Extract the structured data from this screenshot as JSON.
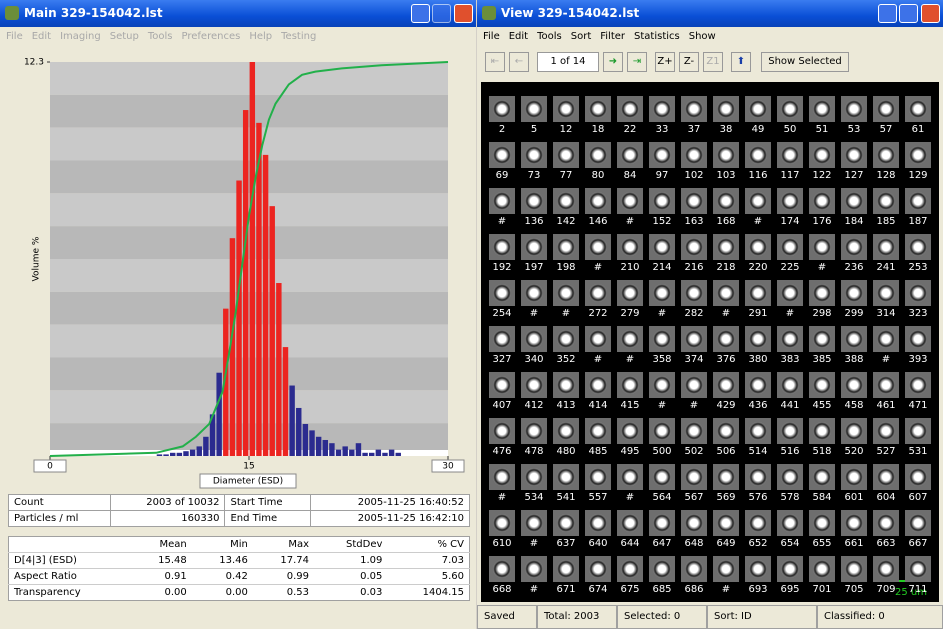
{
  "main_window": {
    "title": "Main  329-154042.lst",
    "menu": [
      "File",
      "Edit",
      "Imaging",
      "Setup",
      "Tools",
      "Preferences",
      "Help",
      "Testing"
    ],
    "chart": {
      "type": "histogram",
      "ylabel": "Volume %",
      "xlabel": "Diameter (ESD)",
      "xlim": [
        0,
        30
      ],
      "xticks": [
        0,
        15,
        30
      ],
      "ylim": [
        0,
        12.3
      ],
      "yticks": [
        12.3
      ],
      "bins": [
        8,
        8.5,
        9,
        9.5,
        10,
        10.5,
        11,
        11.5,
        12,
        12.5,
        13,
        13.5,
        14,
        14.5,
        15,
        15.5,
        16,
        16.5,
        17,
        17.5,
        18,
        18.5,
        19,
        19.5,
        20,
        20.5,
        21,
        21.5,
        22,
        22.5,
        23,
        23.5,
        24,
        24.5,
        25,
        25.5,
        26,
        26.5
      ],
      "values": [
        0.05,
        0.05,
        0.1,
        0.1,
        0.15,
        0.2,
        0.3,
        0.6,
        1.3,
        2.6,
        4.6,
        6.8,
        8.6,
        10.8,
        12.3,
        10.4,
        9.4,
        7.8,
        5.4,
        3.4,
        2.2,
        1.5,
        1.0,
        0.8,
        0.6,
        0.5,
        0.4,
        0.2,
        0.3,
        0.2,
        0.4,
        0.1,
        0.1,
        0.2,
        0.1,
        0.2,
        0.1
      ],
      "color": "#2b2b8f",
      "highlight_range": [
        13,
        18
      ],
      "highlight_color": "#ec2420",
      "line": {
        "color": "#22b04a",
        "x": [
          0,
          8,
          10,
          11,
          12,
          13,
          13.5,
          14,
          14.5,
          15,
          15.5,
          16,
          16.5,
          17,
          18,
          19,
          20,
          22,
          25,
          30
        ],
        "values": [
          0,
          0.1,
          0.3,
          0.6,
          1.0,
          2.0,
          3.2,
          4.5,
          6.0,
          7.5,
          8.7,
          9.7,
          10.5,
          11.0,
          11.6,
          11.9,
          12.0,
          12.1,
          12.2,
          12.3
        ]
      }
    },
    "summary": [
      [
        "Count",
        "2003  of  10032",
        "Start Time",
        "2005-11-25  16:40:52"
      ],
      [
        "Particles / ml",
        "160330",
        "End Time",
        "2005-11-25  16:42:10"
      ]
    ],
    "stats": {
      "header": [
        "Mean",
        "Min",
        "Max",
        "StdDev",
        "% CV"
      ],
      "rows": [
        [
          "D[4|3] (ESD)",
          "15.48",
          "13.46",
          "17.74",
          "1.09",
          "7.03"
        ],
        [
          "Aspect Ratio",
          "0.91",
          "0.42",
          "0.99",
          "0.05",
          "5.60"
        ],
        [
          "Transparency",
          "0.00",
          "0.00",
          "0.53",
          "0.03",
          "1404.15"
        ]
      ]
    }
  },
  "view_window": {
    "title": "View  329-154042.lst",
    "menu": [
      "File",
      "Edit",
      "Tools",
      "Sort",
      "Filter",
      "Statistics",
      "Show"
    ],
    "page": "1 of 14",
    "zoom_buttons": [
      "Z+",
      "Z-",
      "Z1"
    ],
    "show_selected": "Show Selected",
    "particles": [
      [
        "2",
        "5",
        "12",
        "18",
        "22",
        "33",
        "37",
        "38",
        "49",
        "50",
        "51",
        "53",
        "57",
        "61"
      ],
      [
        "69",
        "73",
        "77",
        "80",
        "84",
        "97",
        "102",
        "103",
        "116",
        "117",
        "122",
        "127",
        "128",
        "129"
      ],
      [
        "#",
        "136",
        "142",
        "146",
        "#",
        "152",
        "163",
        "168",
        "#",
        "174",
        "176",
        "184",
        "185",
        "187"
      ],
      [
        "192",
        "197",
        "198",
        "#",
        "210",
        "214",
        "216",
        "218",
        "220",
        "225",
        "#",
        "236",
        "241",
        "253"
      ],
      [
        "254",
        "#",
        "#",
        "272",
        "279",
        "#",
        "282",
        "#",
        "291",
        "#",
        "298",
        "299",
        "314",
        "323"
      ],
      [
        "327",
        "340",
        "352",
        "#",
        "#",
        "358",
        "374",
        "376",
        "380",
        "383",
        "385",
        "388",
        "#",
        "393"
      ],
      [
        "407",
        "412",
        "413",
        "414",
        "415",
        "#",
        "#",
        "429",
        "436",
        "441",
        "455",
        "458",
        "461",
        "471"
      ],
      [
        "476",
        "478",
        "480",
        "485",
        "495",
        "500",
        "502",
        "506",
        "514",
        "516",
        "518",
        "520",
        "527",
        "531"
      ],
      [
        "#",
        "534",
        "541",
        "557",
        "#",
        "564",
        "567",
        "569",
        "576",
        "578",
        "584",
        "601",
        "604",
        "607"
      ],
      [
        "610",
        "#",
        "637",
        "640",
        "644",
        "647",
        "648",
        "649",
        "652",
        "654",
        "655",
        "661",
        "663",
        "667"
      ],
      [
        "668",
        "#",
        "671",
        "674",
        "675",
        "685",
        "686",
        "#",
        "693",
        "695",
        "701",
        "705",
        "709",
        "711"
      ]
    ],
    "scale_bar": "25 um",
    "status": [
      "Saved",
      "Total: 2003",
      "Selected: 0",
      "Sort: ID",
      "Classified: 0"
    ]
  }
}
